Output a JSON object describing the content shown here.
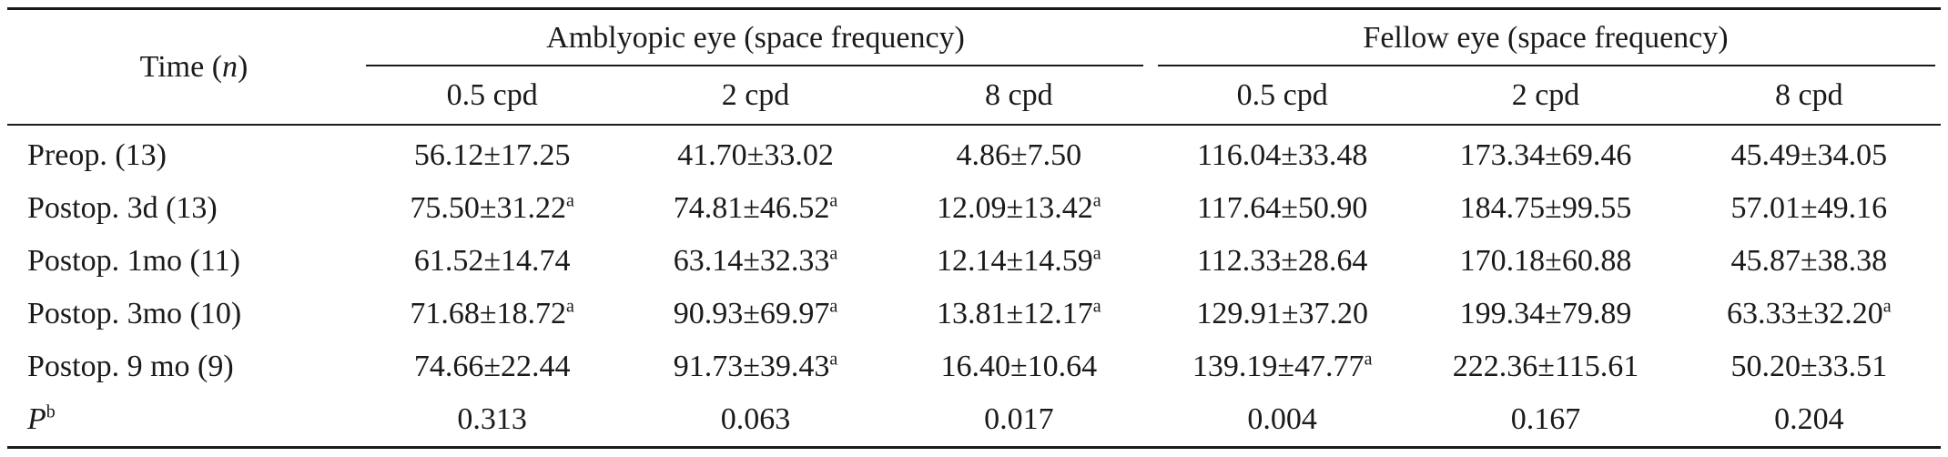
{
  "table": {
    "header": {
      "time_label": "Time",
      "time_n": "n",
      "groups": [
        {
          "label": "Amblyopic eye (space frequency)"
        },
        {
          "label": "Fellow eye (space frequency)"
        }
      ],
      "frequencies": [
        "0.5 cpd",
        "2 cpd",
        "8 cpd",
        "0.5 cpd",
        "2 cpd",
        "8 cpd"
      ]
    },
    "rows": [
      {
        "label": "Preop. (13)",
        "cells": [
          {
            "value": "56.12±17.25",
            "sup": ""
          },
          {
            "value": "41.70±33.02",
            "sup": ""
          },
          {
            "value": "4.86±7.50",
            "sup": ""
          },
          {
            "value": "116.04±33.48",
            "sup": ""
          },
          {
            "value": "173.34±69.46",
            "sup": ""
          },
          {
            "value": "45.49±34.05",
            "sup": ""
          }
        ]
      },
      {
        "label": "Postop. 3d (13)",
        "cells": [
          {
            "value": "75.50±31.22",
            "sup": "a"
          },
          {
            "value": "74.81±46.52",
            "sup": "a"
          },
          {
            "value": "12.09±13.42",
            "sup": "a"
          },
          {
            "value": "117.64±50.90",
            "sup": ""
          },
          {
            "value": "184.75±99.55",
            "sup": ""
          },
          {
            "value": "57.01±49.16",
            "sup": ""
          }
        ]
      },
      {
        "label": "Postop. 1mo (11)",
        "cells": [
          {
            "value": "61.52±14.74",
            "sup": ""
          },
          {
            "value": "63.14±32.33",
            "sup": "a"
          },
          {
            "value": "12.14±14.59",
            "sup": "a"
          },
          {
            "value": "112.33±28.64",
            "sup": ""
          },
          {
            "value": "170.18±60.88",
            "sup": ""
          },
          {
            "value": "45.87±38.38",
            "sup": ""
          }
        ]
      },
      {
        "label": "Postop. 3mo (10)",
        "cells": [
          {
            "value": "71.68±18.72",
            "sup": "a"
          },
          {
            "value": "90.93±69.97",
            "sup": "a"
          },
          {
            "value": "13.81±12.17",
            "sup": "a"
          },
          {
            "value": "129.91±37.20",
            "sup": ""
          },
          {
            "value": "199.34±79.89",
            "sup": ""
          },
          {
            "value": "63.33±32.20",
            "sup": "a"
          }
        ]
      },
      {
        "label": "Postop. 9 mo (9)",
        "cells": [
          {
            "value": "74.66±22.44",
            "sup": ""
          },
          {
            "value": "91.73±39.43",
            "sup": "a"
          },
          {
            "value": "16.40±10.64",
            "sup": ""
          },
          {
            "value": "139.19±47.77",
            "sup": "a"
          },
          {
            "value": "222.36±115.61",
            "sup": ""
          },
          {
            "value": "50.20±33.51",
            "sup": ""
          }
        ]
      }
    ],
    "p_row": {
      "label": "P",
      "label_sup": "b",
      "values": [
        "0.313",
        "0.063",
        "0.017",
        "0.004",
        "0.167",
        "0.204"
      ]
    }
  }
}
